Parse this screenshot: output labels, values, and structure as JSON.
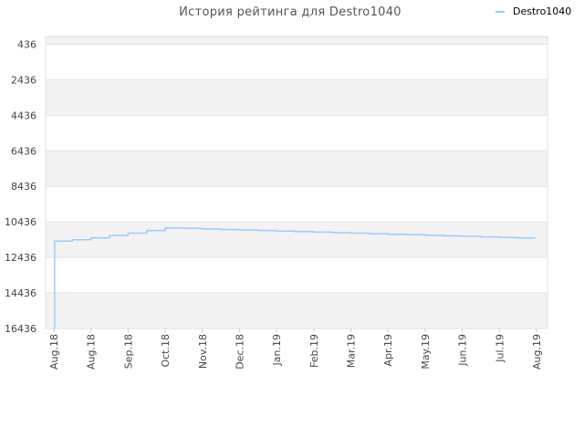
{
  "chart_data": {
    "type": "line",
    "title": "История рейтинга для Destro1040",
    "xlabel": "",
    "ylabel": "",
    "y_reversed": true,
    "ylim": [
      16436,
      0
    ],
    "yticks": [
      436,
      2436,
      4436,
      6436,
      8436,
      10436,
      12436,
      14436,
      16436
    ],
    "xticks": [
      "Aug.18",
      "Aug.18",
      "Sep.18",
      "Oct.18",
      "Nov.18",
      "Dec.18",
      "Jan.19",
      "Feb.19",
      "Mar.19",
      "Apr.19",
      "May.19",
      "Jun.19",
      "Jul.19",
      "Aug.19"
    ],
    "grid": true,
    "band_colors": [
      "#f3f3f3",
      "#ffffff"
    ],
    "legend_position": "top-right",
    "series": [
      {
        "name": "Destro1040",
        "color": "#99ccff",
        "x": [
          0,
          0.02,
          0.5,
          1,
          1.5,
          2,
          2.5,
          3,
          3.5,
          4,
          4.5,
          5,
          5.5,
          6,
          6.5,
          7,
          7.5,
          8,
          8.5,
          9,
          9.5,
          10,
          10.5,
          11,
          11.5,
          12,
          12.5,
          12.95
        ],
        "values": [
          16436,
          11520,
          11440,
          11330,
          11200,
          11070,
          10920,
          10780,
          10800,
          10830,
          10860,
          10890,
          10920,
          10950,
          10980,
          11010,
          11040,
          11070,
          11100,
          11130,
          11160,
          11190,
          11220,
          11250,
          11280,
          11310,
          11340,
          11380
        ]
      }
    ]
  }
}
